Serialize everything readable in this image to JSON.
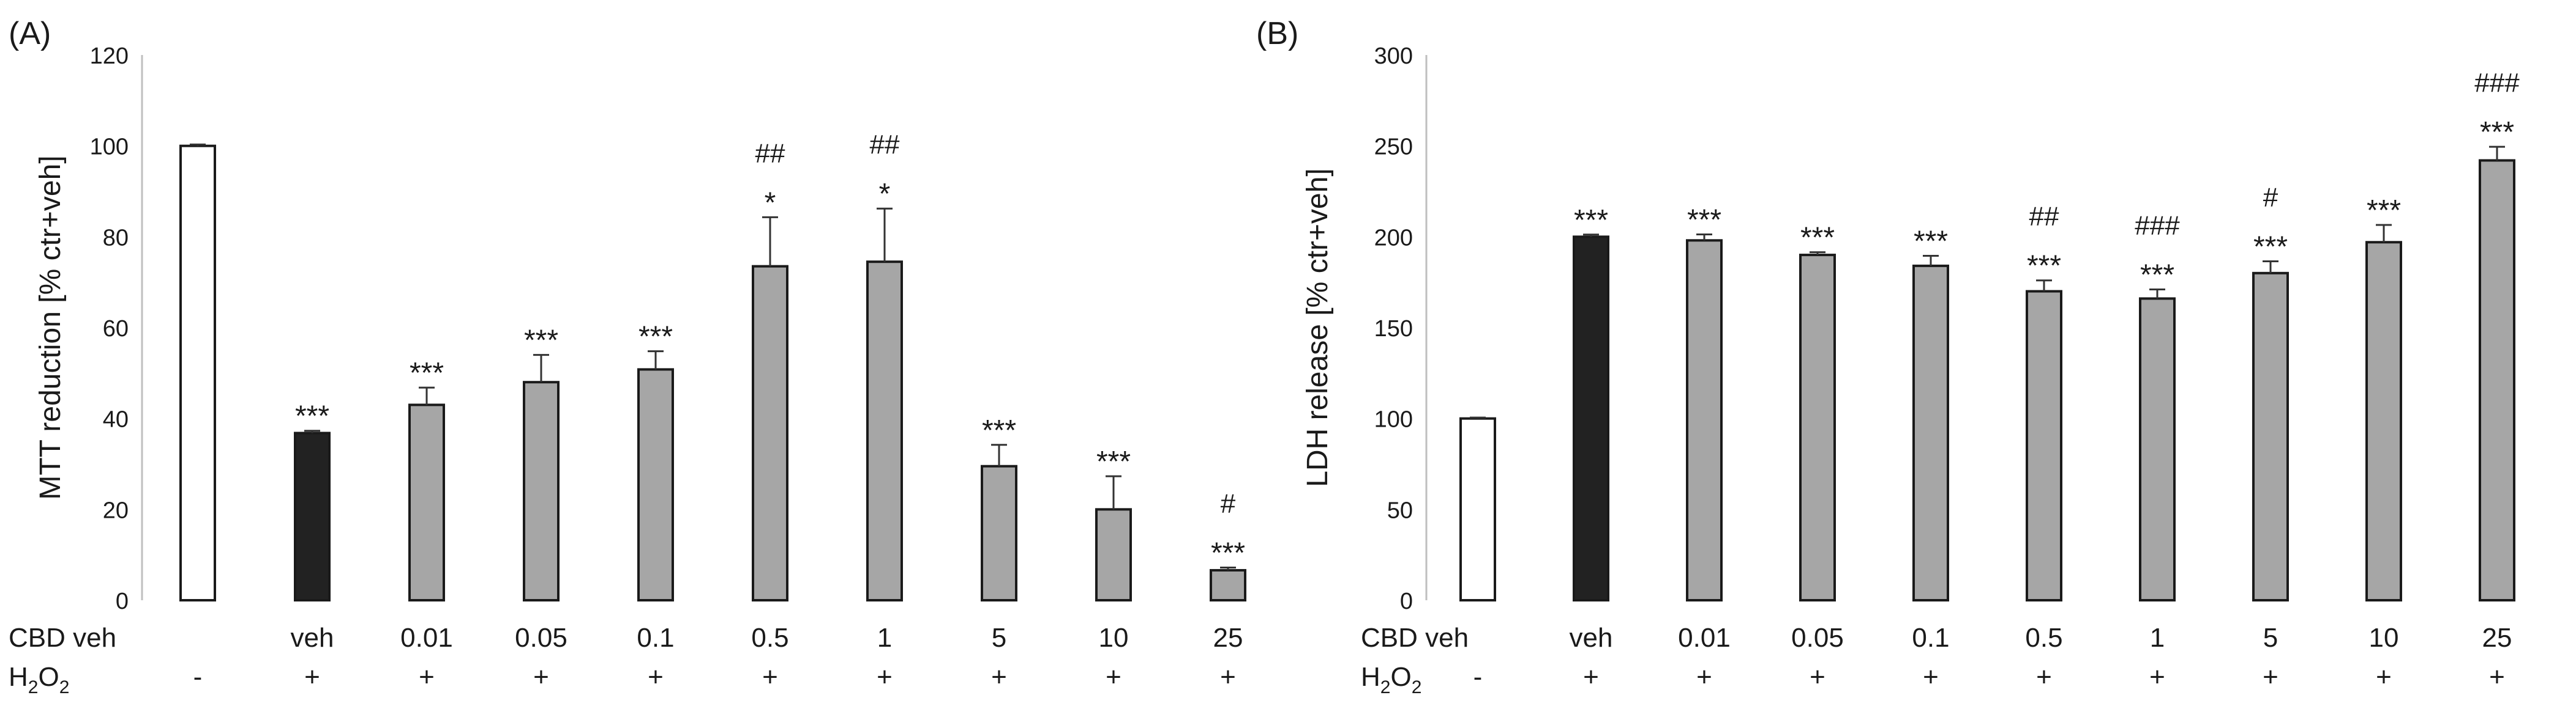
{
  "colors": {
    "control": "#ffffff",
    "vehicle": "#222222",
    "treatment": "#a6a6a6",
    "stroke": "#1a1a1a",
    "axis": "#bfbfbf"
  },
  "chart_data": [
    {
      "panel_label": "(A)",
      "type": "bar",
      "title": "",
      "ylabel": "MTT reduction [% ctr+veh]",
      "ylim": [
        0,
        120
      ],
      "yticks": [
        0,
        20,
        40,
        60,
        80,
        100,
        120
      ],
      "row_labels": {
        "cbd": "CBD veh",
        "h2o2_prefix": "H",
        "h2o2_sub": "2",
        "h2o2_o": "O",
        "h2o2_sub2": "2"
      },
      "categories": [
        "-",
        "veh",
        "0.01",
        "0.05",
        "0.1",
        "0.5",
        "1",
        "5",
        "10",
        "25"
      ],
      "cbd_row": [
        "",
        "veh",
        "0.01",
        "0.05",
        "0.1",
        "0.5",
        "1",
        "5",
        "10",
        "25"
      ],
      "h2o2_row": [
        "-",
        "+",
        "+",
        "+",
        "+",
        "+",
        "+",
        "+",
        "+",
        "+"
      ],
      "values": [
        100,
        36.8,
        43,
        48,
        50.8,
        73.5,
        74.5,
        29.5,
        20,
        6.6
      ],
      "errors": [
        0.3,
        0.5,
        3.8,
        6,
        4,
        10.8,
        11.7,
        4.7,
        7.3,
        0.6
      ],
      "bar_kinds": [
        "control",
        "vehicle",
        "treatment",
        "treatment",
        "treatment",
        "treatment",
        "treatment",
        "treatment",
        "treatment",
        "treatment"
      ],
      "annotations": [
        [],
        [
          "***"
        ],
        [
          "***"
        ],
        [
          "***"
        ],
        [
          "***"
        ],
        [
          "*",
          "##"
        ],
        [
          "*",
          "##"
        ],
        [
          "***"
        ],
        [
          "***"
        ],
        [
          "***",
          "#"
        ]
      ]
    },
    {
      "panel_label": "(B)",
      "type": "bar",
      "title": "",
      "ylabel": "LDH release [% ctr+veh]",
      "ylim": [
        0,
        300
      ],
      "yticks": [
        0,
        50,
        100,
        150,
        200,
        250,
        300
      ],
      "row_labels": {
        "cbd": "CBD veh",
        "h2o2_prefix": "H",
        "h2o2_sub": "2",
        "h2o2_o": "O",
        "h2o2_sub2": "2"
      },
      "categories": [
        "-",
        "veh",
        "0.01",
        "0.05",
        "0.1",
        "0.5",
        "1",
        "5",
        "10",
        "25"
      ],
      "cbd_row": [
        "",
        "veh",
        "0.01",
        "0.05",
        "0.1",
        "0.5",
        "1",
        "5",
        "10",
        "25"
      ],
      "h2o2_row": [
        "-",
        "+",
        "+",
        "+",
        "+",
        "+",
        "+",
        "+",
        "+",
        "+"
      ],
      "values": [
        100,
        200,
        198,
        190,
        184,
        170,
        166,
        180,
        197,
        242
      ],
      "errors": [
        0.5,
        1.2,
        3.3,
        1.5,
        5.5,
        6,
        5,
        6.5,
        9.5,
        7.5
      ],
      "bar_kinds": [
        "control",
        "vehicle",
        "treatment",
        "treatment",
        "treatment",
        "treatment",
        "treatment",
        "treatment",
        "treatment",
        "treatment"
      ],
      "annotations": [
        [],
        [
          "***"
        ],
        [
          "***"
        ],
        [
          "***"
        ],
        [
          "***"
        ],
        [
          "***",
          "##"
        ],
        [
          "***",
          "###"
        ],
        [
          "***",
          "#"
        ],
        [
          "***"
        ],
        [
          "***",
          "###"
        ]
      ]
    }
  ]
}
